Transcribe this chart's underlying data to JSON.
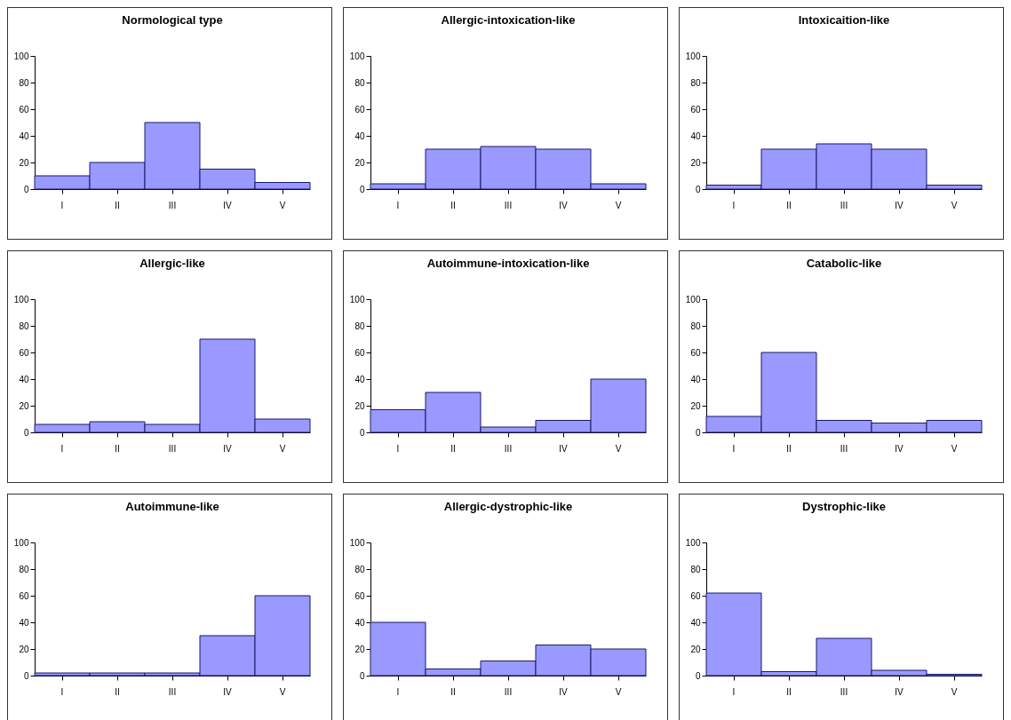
{
  "chart_data": [
    {
      "type": "bar",
      "title": "Normological type",
      "categories": [
        "I",
        "II",
        "III",
        "IV",
        "V"
      ],
      "values": [
        10,
        20,
        50,
        15,
        5
      ],
      "color": "#9999ff",
      "ylim": [
        0,
        100
      ],
      "yticks": [
        0,
        20,
        40,
        60,
        80,
        100
      ]
    },
    {
      "type": "bar",
      "title": "Allergic-intoxication-like",
      "categories": [
        "I",
        "II",
        "III",
        "IV",
        "V"
      ],
      "values": [
        4,
        30,
        32,
        30,
        4
      ],
      "color": "#9999ff",
      "ylim": [
        0,
        100
      ],
      "yticks": [
        0,
        20,
        40,
        60,
        80,
        100
      ]
    },
    {
      "type": "bar",
      "title": "Intoxicaition-like",
      "categories": [
        "I",
        "II",
        "III",
        "IV",
        "V"
      ],
      "values": [
        3,
        30,
        34,
        30,
        3
      ],
      "color": "#9999ff",
      "ylim": [
        0,
        100
      ],
      "yticks": [
        0,
        20,
        40,
        60,
        80,
        100
      ]
    },
    {
      "type": "bar",
      "title": "Allergic-like",
      "categories": [
        "I",
        "II",
        "III",
        "IV",
        "V"
      ],
      "values": [
        6,
        8,
        6,
        70,
        10
      ],
      "color": "#9999ff",
      "ylim": [
        0,
        100
      ],
      "yticks": [
        0,
        20,
        40,
        60,
        80,
        100
      ]
    },
    {
      "type": "bar",
      "title": "Autoimmune-intoxication-like",
      "categories": [
        "I",
        "II",
        "III",
        "IV",
        "V"
      ],
      "values": [
        17,
        30,
        4,
        9,
        40
      ],
      "color": "#9999ff",
      "ylim": [
        0,
        100
      ],
      "yticks": [
        0,
        20,
        40,
        60,
        80,
        100
      ]
    },
    {
      "type": "bar",
      "title": "Catabolic-like",
      "categories": [
        "I",
        "II",
        "III",
        "IV",
        "V"
      ],
      "values": [
        12,
        60,
        9,
        7,
        9
      ],
      "color": "#9999ff",
      "ylim": [
        0,
        100
      ],
      "yticks": [
        0,
        20,
        40,
        60,
        80,
        100
      ]
    },
    {
      "type": "bar",
      "title": "Autoimmune-like",
      "categories": [
        "I",
        "II",
        "III",
        "IV",
        "V"
      ],
      "values": [
        2,
        2,
        2,
        30,
        60
      ],
      "color": "#9999ff",
      "ylim": [
        0,
        100
      ],
      "yticks": [
        0,
        20,
        40,
        60,
        80,
        100
      ]
    },
    {
      "type": "bar",
      "title": "Allergic-dystrophic-like",
      "categories": [
        "I",
        "II",
        "III",
        "IV",
        "V"
      ],
      "values": [
        40,
        5,
        11,
        23,
        20
      ],
      "color": "#9999ff",
      "ylim": [
        0,
        100
      ],
      "yticks": [
        0,
        20,
        40,
        60,
        80,
        100
      ]
    },
    {
      "type": "bar",
      "title": "Dystrophic-like",
      "categories": [
        "I",
        "II",
        "III",
        "IV",
        "V"
      ],
      "values": [
        62,
        3,
        28,
        4,
        1
      ],
      "color": "#9999ff",
      "ylim": [
        0,
        100
      ],
      "yticks": [
        0,
        20,
        40,
        60,
        80,
        100
      ]
    }
  ]
}
